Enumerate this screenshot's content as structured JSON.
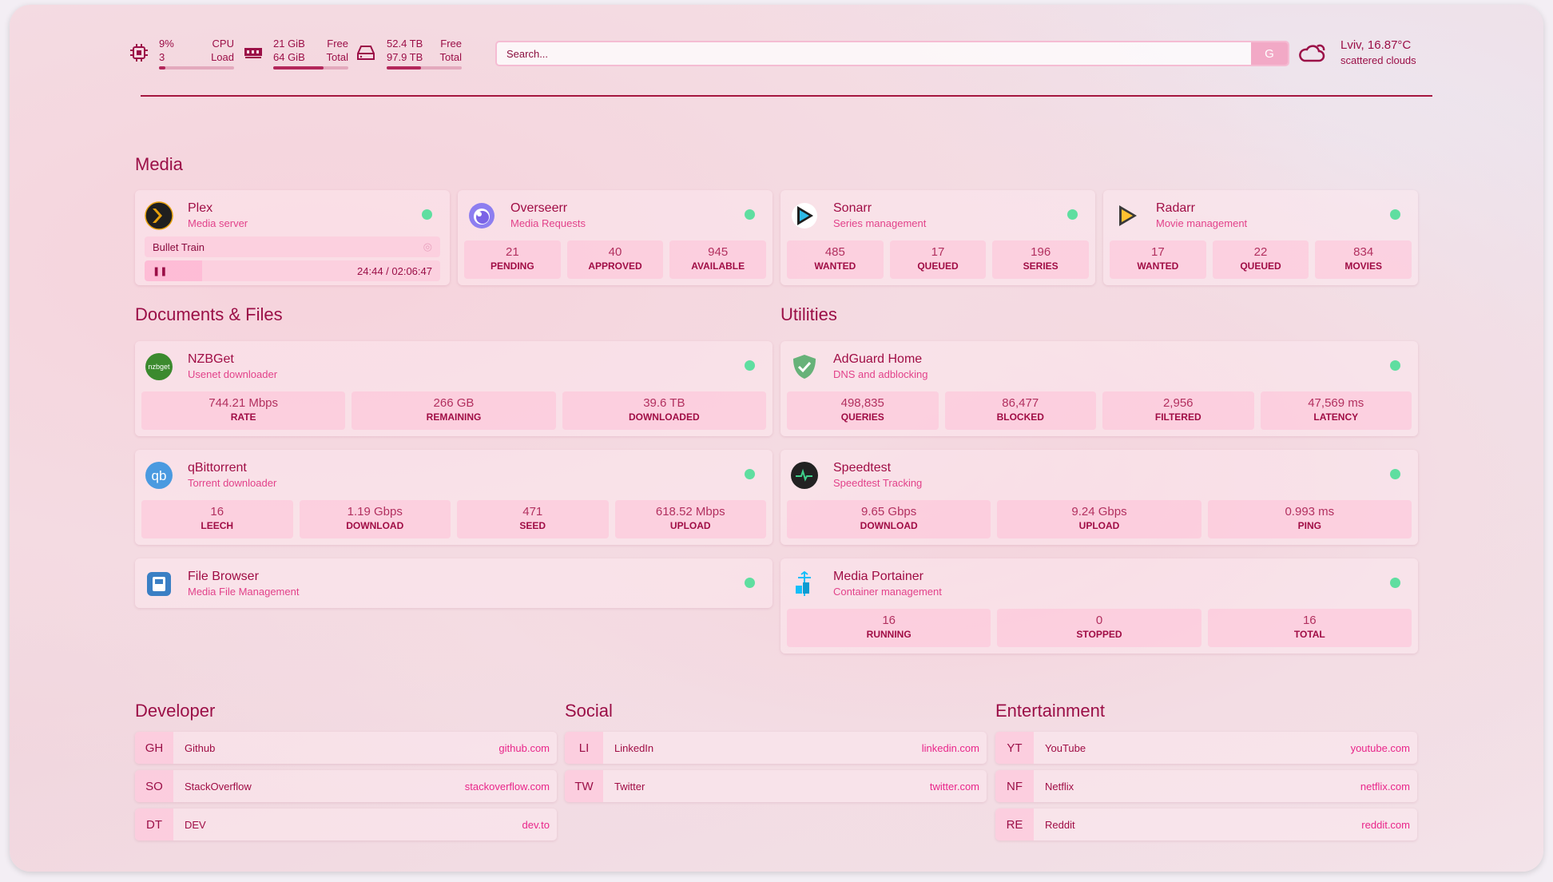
{
  "header": {
    "cpu": {
      "icon": "cpu-icon",
      "value": "9%",
      "load": "3",
      "label1": "CPU",
      "label2": "Load",
      "percent": 9
    },
    "memory": {
      "icon": "memory-icon",
      "free": "21 GiB",
      "total": "64 GiB",
      "label1": "Free",
      "label2": "Total",
      "percent": 67
    },
    "disk": {
      "icon": "disk-icon",
      "free": "52.4 TB",
      "total": "97.9 TB",
      "label1": "Free",
      "label2": "Total",
      "percent": 46
    },
    "search": {
      "placeholder": "Search...",
      "button": "G"
    },
    "weather": {
      "icon": "cloud-icon",
      "location": "Lviv, 16.87°C",
      "condition": "scattered clouds"
    }
  },
  "sections": {
    "media": "Media",
    "docs": "Documents & Files",
    "utilities": "Utilities",
    "developer": "Developer",
    "social": "Social",
    "entertainment": "Entertainment"
  },
  "media": [
    {
      "name": "Plex",
      "desc": "Media server",
      "icon": "plex-icon",
      "color": "#e5a00d",
      "now_playing": "Bullet Train",
      "progress": "24:44 / 02:06:47",
      "progress_pct": 19.5
    },
    {
      "name": "Overseerr",
      "desc": "Media Requests",
      "icon": "overseerr-icon",
      "color": "#8d7ef0",
      "stats": [
        {
          "v": "21",
          "l": "PENDING"
        },
        {
          "v": "40",
          "l": "APPROVED"
        },
        {
          "v": "945",
          "l": "AVAILABLE"
        }
      ]
    },
    {
      "name": "Sonarr",
      "desc": "Series management",
      "icon": "sonarr-icon",
      "color": "#2eb9e6",
      "stats": [
        {
          "v": "485",
          "l": "WANTED"
        },
        {
          "v": "17",
          "l": "QUEUED"
        },
        {
          "v": "196",
          "l": "SERIES"
        }
      ]
    },
    {
      "name": "Radarr",
      "desc": "Movie management",
      "icon": "radarr-icon",
      "color": "#ffc230",
      "stats": [
        {
          "v": "17",
          "l": "WANTED"
        },
        {
          "v": "22",
          "l": "QUEUED"
        },
        {
          "v": "834",
          "l": "MOVIES"
        }
      ]
    }
  ],
  "docs": [
    {
      "name": "NZBGet",
      "desc": "Usenet downloader",
      "icon": "nzbget-icon",
      "logo": "nzbget",
      "color": "#3b8a2e",
      "stats": [
        {
          "v": "744.21 Mbps",
          "l": "RATE"
        },
        {
          "v": "266 GB",
          "l": "REMAINING"
        },
        {
          "v": "39.6 TB",
          "l": "DOWNLOADED"
        }
      ]
    },
    {
      "name": "qBittorrent",
      "desc": "Torrent downloader",
      "icon": "qbittorrent-icon",
      "logo": "qb",
      "color": "#4a9ae0",
      "stats": [
        {
          "v": "16",
          "l": "LEECH"
        },
        {
          "v": "1.19 Gbps",
          "l": "DOWNLOAD"
        },
        {
          "v": "471",
          "l": "SEED"
        },
        {
          "v": "618.52 Mbps",
          "l": "UPLOAD"
        }
      ]
    },
    {
      "name": "File Browser",
      "desc": "Media File Management",
      "icon": "filebrowser-icon",
      "color": "#3a7fc4"
    }
  ],
  "utilities": [
    {
      "name": "AdGuard Home",
      "desc": "DNS and adblocking",
      "icon": "adguard-shield-icon",
      "color": "#67b279",
      "stats": [
        {
          "v": "498,835",
          "l": "QUERIES"
        },
        {
          "v": "86,477",
          "l": "BLOCKED"
        },
        {
          "v": "2,956",
          "l": "FILTERED"
        },
        {
          "v": "47,569 ms",
          "l": "LATENCY"
        }
      ]
    },
    {
      "name": "Speedtest",
      "desc": "Speedtest Tracking",
      "icon": "speedtest-icon",
      "color": "#222",
      "stats": [
        {
          "v": "9.65 Gbps",
          "l": "DOWNLOAD"
        },
        {
          "v": "9.24 Gbps",
          "l": "UPLOAD"
        },
        {
          "v": "0.993 ms",
          "l": "PING"
        }
      ]
    },
    {
      "name": "Media Portainer",
      "desc": "Container management",
      "icon": "portainer-icon",
      "color": "#13bef9",
      "stats": [
        {
          "v": "16",
          "l": "RUNNING"
        },
        {
          "v": "0",
          "l": "STOPPED"
        },
        {
          "v": "16",
          "l": "TOTAL"
        }
      ]
    }
  ],
  "bookmarks": {
    "developer": [
      {
        "abbr": "GH",
        "name": "Github",
        "url": "github.com"
      },
      {
        "abbr": "SO",
        "name": "StackOverflow",
        "url": "stackoverflow.com"
      },
      {
        "abbr": "DT",
        "name": "DEV",
        "url": "dev.to"
      }
    ],
    "social": [
      {
        "abbr": "LI",
        "name": "LinkedIn",
        "url": "linkedin.com"
      },
      {
        "abbr": "TW",
        "name": "Twitter",
        "url": "twitter.com"
      }
    ],
    "entertainment": [
      {
        "abbr": "YT",
        "name": "YouTube",
        "url": "youtube.com"
      },
      {
        "abbr": "NF",
        "name": "Netflix",
        "url": "netflix.com"
      },
      {
        "abbr": "RE",
        "name": "Reddit",
        "url": "reddit.com"
      }
    ]
  },
  "colors": {
    "text": "#9b0f47",
    "accent": "#e9268a",
    "status_up": "#5fdea0",
    "rule": "#a5163f"
  }
}
